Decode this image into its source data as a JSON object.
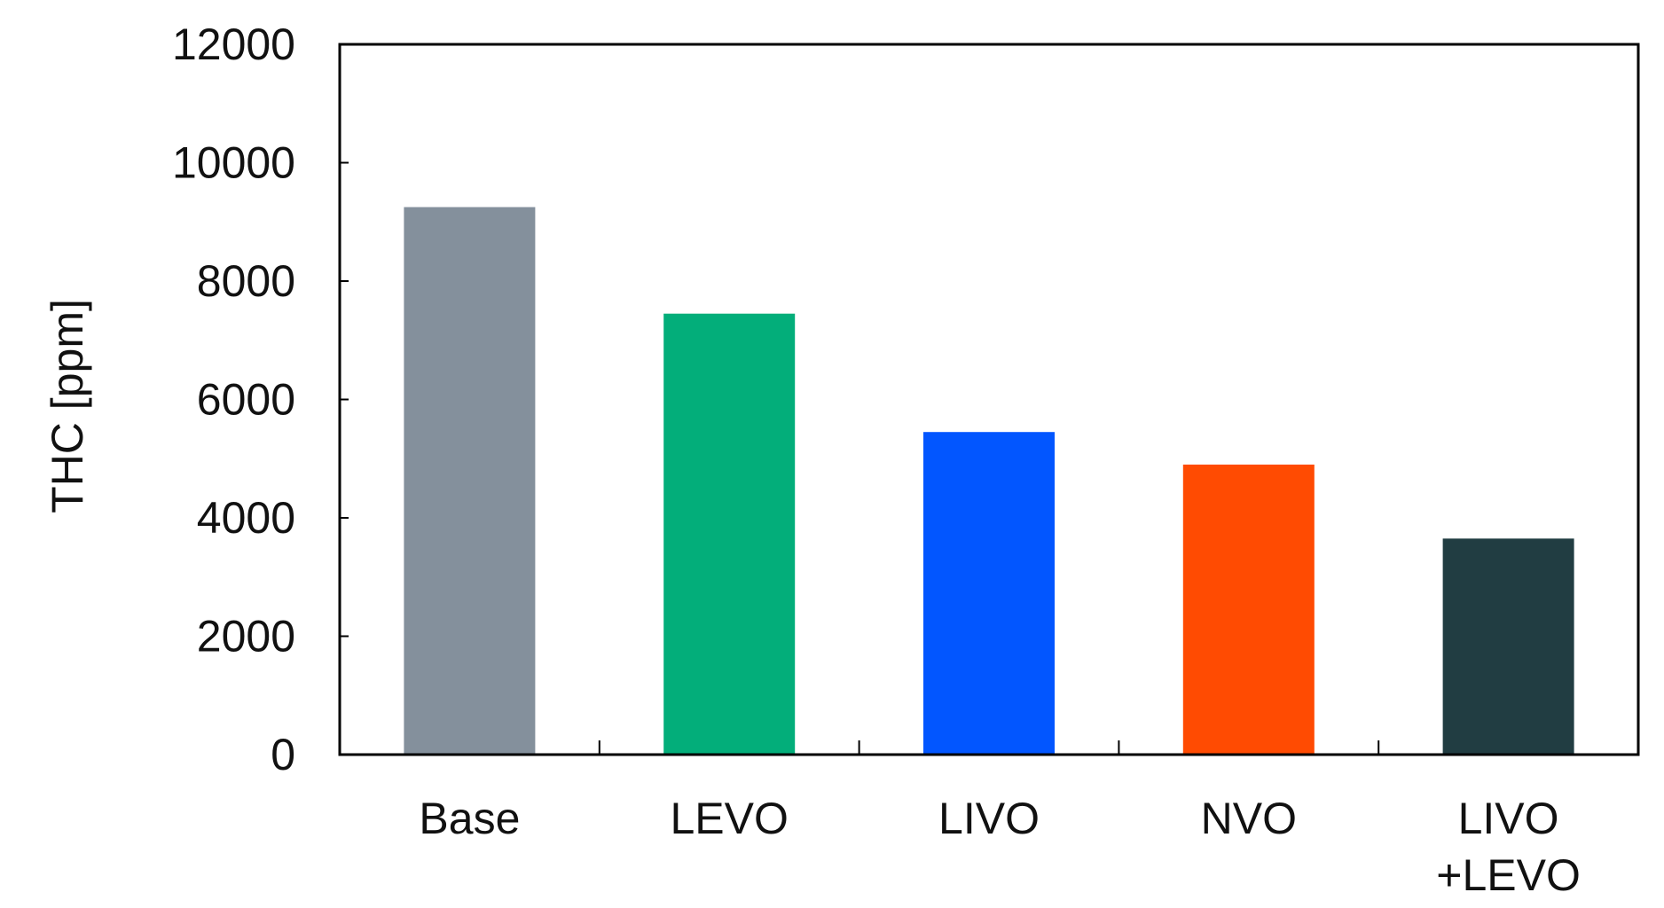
{
  "chart_data": {
    "type": "bar",
    "title": "",
    "xlabel": "",
    "ylabel": "THC [ppm]",
    "ylim": [
      0,
      12000
    ],
    "yticks": [
      0,
      2000,
      4000,
      6000,
      8000,
      10000,
      12000
    ],
    "categories": [
      [
        "Base"
      ],
      [
        "LEVO"
      ],
      [
        "LIVO"
      ],
      [
        "NVO"
      ],
      [
        "LIVO",
        "+LEVO"
      ]
    ],
    "values": [
      9250,
      7450,
      5450,
      4900,
      3650
    ],
    "colors": [
      "#84909C",
      "#03AE7A",
      "#0256FF",
      "#FF4B02",
      "#213D42"
    ],
    "grid": false,
    "legend": "none"
  }
}
